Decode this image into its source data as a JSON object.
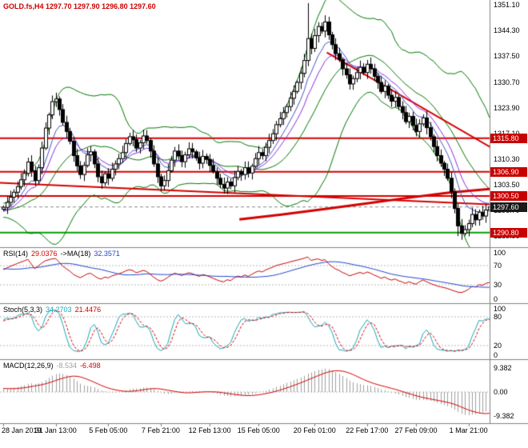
{
  "title": {
    "text": "GOLD.fs,H4 1297.70 1297.90 1296.80 1297.60"
  },
  "colors": {
    "background": "#FFFFFF",
    "title_text": "#CC0000",
    "axis_text": "#000000",
    "separator": "#808080",
    "candle_up_fill": "#FFFFFF",
    "candle_down_fill": "#000000",
    "candle_border": "#000000",
    "bollinger": "#007800",
    "ma_fast": "#4455C4",
    "ma_mid": "#8A2BE2",
    "trend_red": "#D40000",
    "hline_green": "#00A000",
    "current_line": "#888888",
    "rsi_line": "#CC0000",
    "rsi_ma": "#2244CC",
    "stoch_main": "#18A8B8",
    "stoch_signal": "#D40000",
    "macd_hist": "#A0A0A0",
    "macd_signal": "#D40000",
    "level_line": "#B8B8B8"
  },
  "chart_data": {
    "type": "candlestick",
    "symbol": "GOLD.fs",
    "timeframe": "H4",
    "ohlc_display": {
      "open": "1297.70",
      "high": "1297.90",
      "low": "1296.80",
      "close": "1297.60"
    },
    "price_axis": {
      "labels": [
        "1351.10",
        "1344.30",
        "1337.50",
        "1330.70",
        "1323.90",
        "1317.10",
        "1310.30",
        "1303.50",
        "1296.70",
        "1289.90"
      ],
      "min": 1288.0,
      "max": 1352.0
    },
    "x_axis": {
      "labels": [
        {
          "text": "28 Jan 2019",
          "index": 0
        },
        {
          "text": "31 Jan 13:00",
          "index": 15
        },
        {
          "text": "5 Feb 05:00",
          "index": 30
        },
        {
          "text": "7 Feb 21:00",
          "index": 45
        },
        {
          "text": "12 Feb 13:00",
          "index": 59
        },
        {
          "text": "15 Feb 05:00",
          "index": 73
        },
        {
          "text": "20 Feb 01:00",
          "index": 89
        },
        {
          "text": "22 Feb 17:00",
          "index": 104
        },
        {
          "text": "27 Feb 09:00",
          "index": 118
        },
        {
          "text": "1 Mar 21:00",
          "index": 133
        }
      ]
    },
    "pre_closes": [
      1284.0,
      1285.2,
      1284.6,
      1286.0,
      1287.1,
      1286.4,
      1288.0,
      1289.2,
      1288.5,
      1290.0,
      1291.2,
      1290.4,
      1292.0,
      1293.1,
      1292.3,
      1293.8,
      1295.0,
      1294.2,
      1295.6,
      1296.4,
      1295.5,
      1296.8,
      1297.5,
      1296.6,
      1297.8,
      1298.4,
      1297.2,
      1298.0,
      1296.5,
      1297.2,
      1295.8,
      1296.6,
      1295.2,
      1296.0,
      1294.8,
      1295.6,
      1296.3,
      1297.0,
      1296.2,
      1297.0
    ],
    "closes": [
      1297.5,
      1298.8,
      1300.2,
      1301.5,
      1303.0,
      1304.8,
      1306.5,
      1309.5,
      1307.2,
      1304.6,
      1308.0,
      1313.2,
      1318.5,
      1322.0,
      1325.5,
      1326.2,
      1323.4,
      1320.0,
      1317.6,
      1315.0,
      1311.2,
      1308.5,
      1306.2,
      1308.6,
      1311.4,
      1312.2,
      1309.0,
      1305.6,
      1304.0,
      1306.4,
      1305.2,
      1307.6,
      1309.0,
      1310.4,
      1312.0,
      1314.4,
      1316.2,
      1315.4,
      1313.2,
      1314.6,
      1316.4,
      1315.2,
      1312.4,
      1309.0,
      1305.6,
      1303.2,
      1304.6,
      1307.2,
      1310.0,
      1312.4,
      1311.2,
      1309.6,
      1311.4,
      1313.0,
      1312.2,
      1310.6,
      1309.2,
      1311.0,
      1310.2,
      1308.6,
      1307.0,
      1305.2,
      1303.6,
      1302.6,
      1304.2,
      1303.2,
      1305.4,
      1307.0,
      1306.2,
      1308.0,
      1306.6,
      1308.4,
      1310.4,
      1312.0,
      1311.2,
      1313.4,
      1315.2,
      1317.0,
      1319.4,
      1321.0,
      1322.6,
      1324.2,
      1326.4,
      1328.2,
      1330.6,
      1333.0,
      1336.4,
      1342.2,
      1339.6,
      1343.0,
      1345.4,
      1344.2,
      1346.6,
      1343.2,
      1340.6,
      1338.2,
      1336.6,
      1334.2,
      1332.6,
      1330.2,
      1331.6,
      1333.2,
      1334.6,
      1333.2,
      1335.4,
      1334.2,
      1332.2,
      1330.6,
      1328.2,
      1329.6,
      1327.2,
      1325.6,
      1326.6,
      1324.2,
      1322.6,
      1320.2,
      1321.6,
      1319.2,
      1317.6,
      1319.6,
      1321.2,
      1318.6,
      1316.2,
      1313.6,
      1311.2,
      1309.2,
      1307.6,
      1305.2,
      1301.6,
      1297.2,
      1292.6,
      1290.6,
      1291.6,
      1293.2,
      1295.6,
      1294.2,
      1296.2,
      1295.2,
      1296.8,
      1297.6
    ],
    "spikes": {
      "high_index": 87,
      "high": 1351.6,
      "low_index": 130,
      "low": 1289.9
    },
    "hlines": [
      {
        "price": 1315.8,
        "label": "1315.80",
        "color": "#D40000",
        "width": 2,
        "box": "#C80000"
      },
      {
        "price": 1306.9,
        "label": "1306.90",
        "color": "#D40000",
        "width": 2,
        "box": "#C80000"
      },
      {
        "price": 1300.5,
        "label": "1300.50",
        "color": "#D40000",
        "width": 2,
        "box": "#C80000"
      },
      {
        "price": 1290.8,
        "label": "1290.80",
        "color": "#00A000",
        "width": 2,
        "box": "#C80000"
      }
    ],
    "current_price": {
      "value": 1297.6,
      "label": "1297.60",
      "line_color": "#888888",
      "box": "#1A1A1A"
    },
    "trendlines": [
      {
        "i1": 93,
        "p1": 1338.5,
        "i2": 141,
        "p2": 1312.8,
        "color": "#D40000",
        "width": 2
      },
      {
        "i1": -1,
        "p1": 1304.0,
        "i2": 141,
        "p2": 1298.2,
        "color": "#D40000",
        "width": 2
      }
    ],
    "ma_red_curve": {
      "color": "#D40000",
      "width": 3,
      "points": [
        [
          68,
          1294.3
        ],
        [
          80,
          1295.6
        ],
        [
          92,
          1297.0
        ],
        [
          104,
          1298.5
        ],
        [
          116,
          1300.0
        ],
        [
          128,
          1301.4
        ],
        [
          140,
          1302.4
        ]
      ]
    },
    "indicators": {
      "bollinger": {
        "period": 20,
        "dev": 2
      },
      "ma_fast": {
        "period": 8
      },
      "ma_mid": {
        "period": 13
      },
      "rsi": {
        "label": "RSI(14)",
        "value": "29.0376",
        "ma_label": "->MA(18)",
        "ma_value": "32.3571",
        "period": 14,
        "ma_period": 18,
        "levels": [
          70,
          30
        ],
        "axis": [
          "100",
          "70",
          "30",
          "0"
        ]
      },
      "stoch": {
        "label": "Stoch(5,3,3)",
        "value": "34.2703",
        "signal_value": "21.4476",
        "k": 5,
        "slow": 3,
        "d": 3,
        "levels": [
          80,
          20
        ],
        "axis": [
          "100",
          "80",
          "20",
          "0"
        ]
      },
      "macd": {
        "label": "MACD(12,26,9)",
        "value": "-8.534",
        "signal_value": "-6.498",
        "fast": 12,
        "slow": 26,
        "signal": 9,
        "axis": [
          "9.382",
          "0.00",
          "-9.382"
        ],
        "range": 11.5
      }
    }
  }
}
